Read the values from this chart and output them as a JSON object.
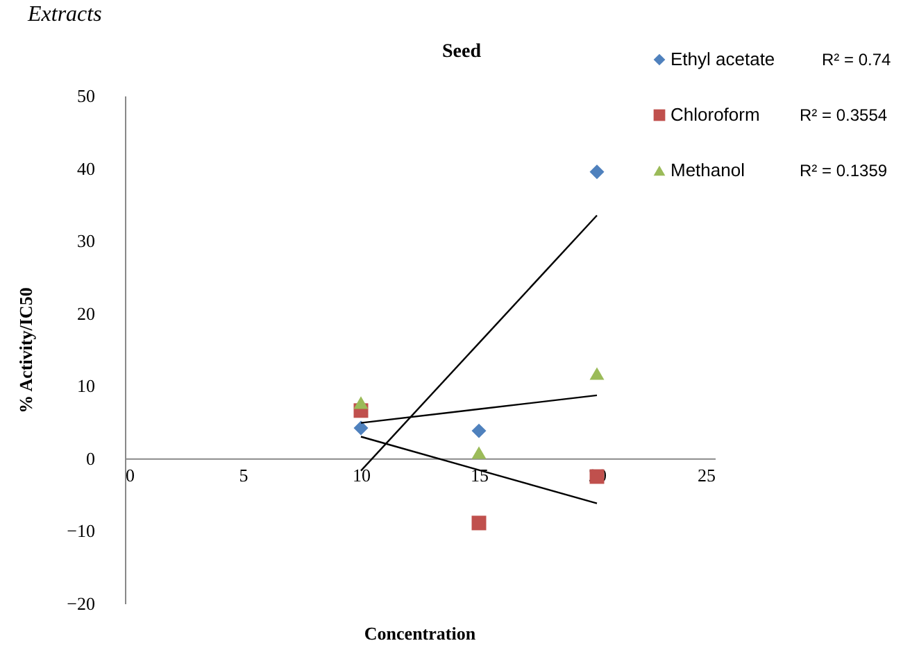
{
  "chart_data": {
    "type": "scatter",
    "title": "Seed",
    "xlabel": "Concentration",
    "ylabel": "% Activity/IC50",
    "x": [
      10,
      15,
      20
    ],
    "series": [
      {
        "name": "Ethyl acetate",
        "color": "#4f81bd",
        "marker": "diamond",
        "values": [
          4.2,
          3.8,
          39.5
        ]
      },
      {
        "name": "Chloroform",
        "color": "#c0504d",
        "marker": "square",
        "values": [
          6.6,
          -8.9,
          -2.5
        ]
      },
      {
        "name": "Methanol",
        "color": "#9bbb59",
        "marker": "triangle",
        "values": [
          7.7,
          0.8,
          11.7
        ]
      },
      {
        "type": "line",
        "color": "#000000",
        "marker": "none",
        "values": [
          -1.7,
          15.9,
          33.5
        ]
      },
      {
        "type": "line",
        "color": "#000000",
        "marker": "none",
        "values": [
          3.0,
          -1.6,
          -6.2
        ]
      },
      {
        "type": "line",
        "color": "#000000",
        "marker": "none",
        "values": [
          4.9,
          6.8,
          8.7
        ]
      }
    ],
    "annotations": [
      "R² = 0.74",
      "R² = 0.3554",
      "R² = 0.1359",
      "Extracts"
    ],
    "xlim": [
      0,
      25
    ],
    "ylim": [
      -20,
      50
    ],
    "xticks": [
      0,
      5,
      10,
      15,
      20,
      25
    ],
    "yticks": [
      -20,
      -10,
      0,
      10,
      20,
      30,
      40,
      50
    ],
    "grid": false,
    "legend": "top right"
  }
}
